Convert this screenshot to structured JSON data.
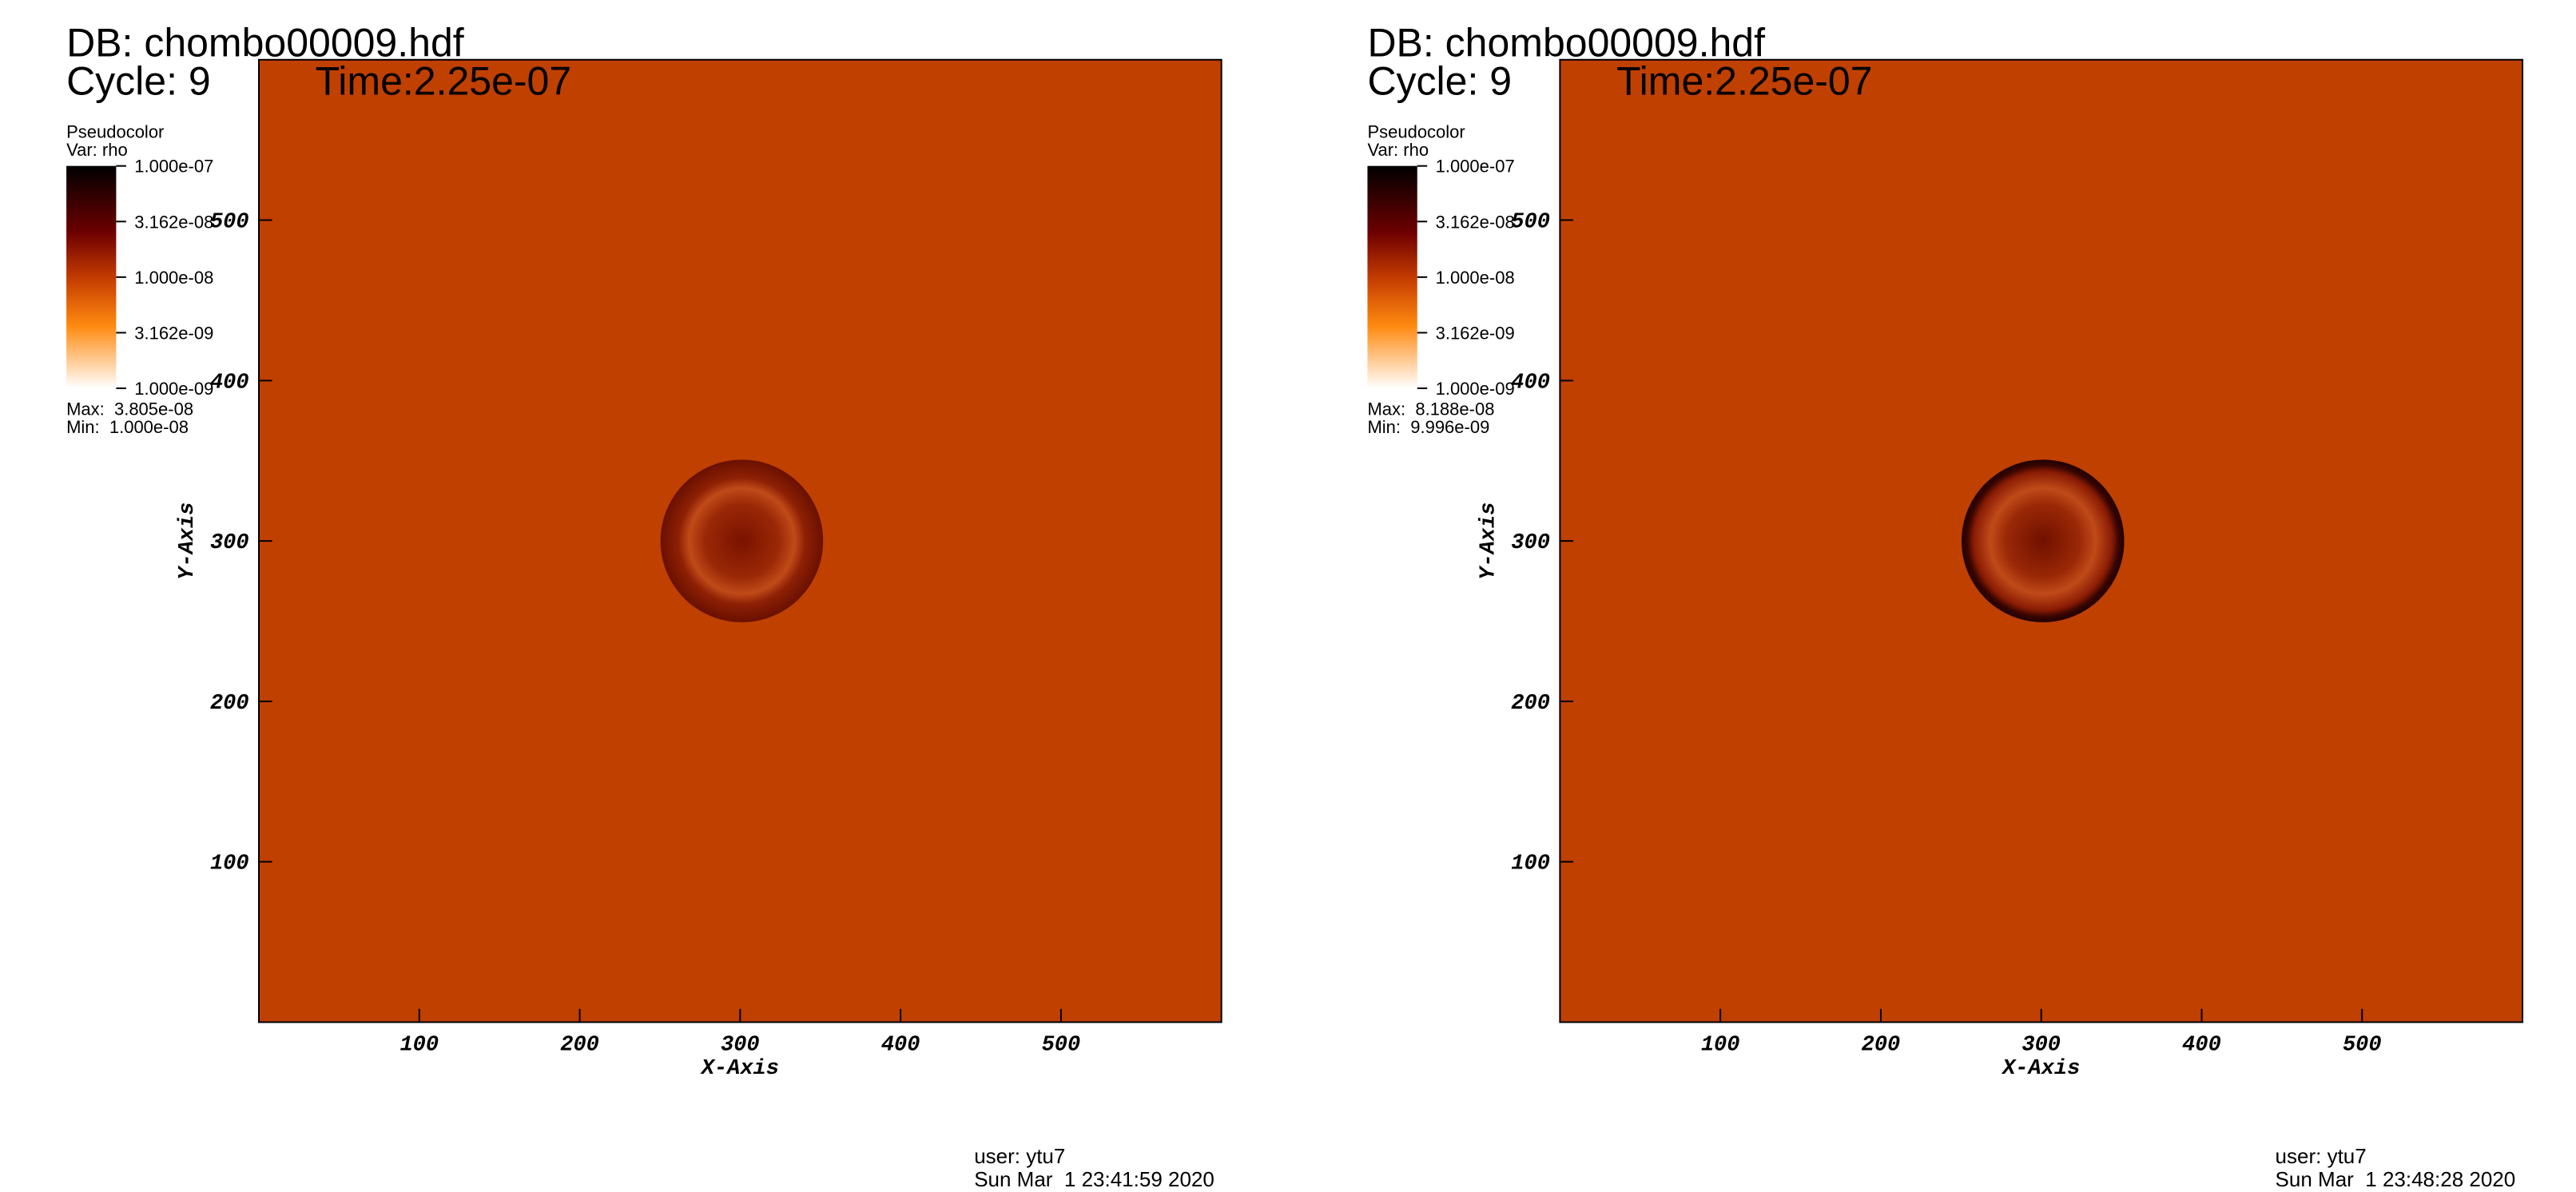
{
  "chart_data": [
    {
      "type": "pseudocolor",
      "title": "DB: chombo00009.hdf",
      "cycle": "Cycle: 9",
      "time": "Time:2.25e-07",
      "legend_title": "Pseudocolor",
      "variable": "Var: rho",
      "colorbar": {
        "log": true,
        "lim": [
          1e-09,
          1e-07
        ],
        "ticks": [
          {
            "value": 1e-07,
            "label": "1.000e-07"
          },
          {
            "value": 3.162e-08,
            "label": "3.162e-08"
          },
          {
            "value": 1e-08,
            "label": "1.000e-08"
          },
          {
            "value": 3.162e-09,
            "label": "3.162e-09"
          },
          {
            "value": 1e-09,
            "label": "1.000e-09"
          }
        ]
      },
      "max": "Max:  3.805e-08",
      "min": "Min:  1.000e-08",
      "xlabel": "X-Axis",
      "ylabel": "Y-Axis",
      "xlim": [
        0,
        600
      ],
      "ylim": [
        0,
        600
      ],
      "xticks": [
        100,
        200,
        300,
        400,
        500
      ],
      "yticks": [
        100,
        200,
        300,
        400,
        500
      ],
      "color": "#c04000",
      "user": "user: ytu7",
      "date": "Sun Mar  1 23:41:59 2020"
    },
    {
      "type": "pseudocolor",
      "title": "DB: chombo00009.hdf",
      "cycle": "Cycle: 9",
      "time": "Time:2.25e-07",
      "legend_title": "Pseudocolor",
      "variable": "Var: rho",
      "colorbar": {
        "log": true,
        "lim": [
          1e-09,
          1e-07
        ],
        "ticks": [
          {
            "value": 1e-07,
            "label": "1.000e-07"
          },
          {
            "value": 3.162e-08,
            "label": "3.162e-08"
          },
          {
            "value": 1e-08,
            "label": "1.000e-08"
          },
          {
            "value": 3.162e-09,
            "label": "3.162e-09"
          },
          {
            "value": 1e-09,
            "label": "1.000e-09"
          }
        ]
      },
      "max": "Max:  8.188e-08",
      "min": "Min:  9.996e-09",
      "xlabel": "X-Axis",
      "ylabel": "Y-Axis",
      "xlim": [
        0,
        600
      ],
      "ylim": [
        0,
        600
      ],
      "xticks": [
        100,
        200,
        300,
        400,
        500
      ],
      "yticks": [
        100,
        200,
        300,
        400,
        500
      ],
      "color": "#c04000",
      "user": "user: ytu7",
      "date": "Sun Mar  1 23:48:28 2020"
    }
  ]
}
